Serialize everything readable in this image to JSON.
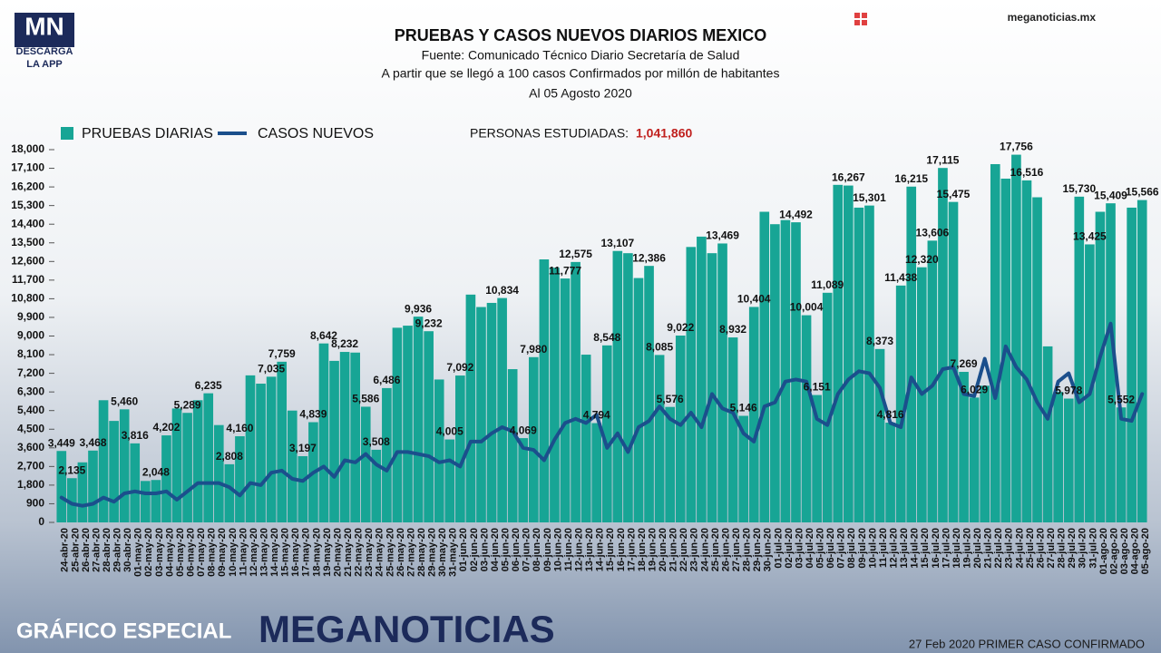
{
  "branding": {
    "logo": "MN",
    "logo_sub": "DESCARGA",
    "logo_app": "LA APP",
    "site": "meganoticias.mx",
    "footer_left": "GRÁFICO ESPECIAL",
    "footer_brand": "MEGANOTICIAS",
    "footer_note": "27 Feb 2020 PRIMER CASO CONFIRMADO"
  },
  "chart_data": {
    "type": "bar",
    "title": "PRUEBAS Y CASOS NUEVOS DIARIOS MEXICO",
    "subtitle": [
      "Fuente: Comunicado Técnico Diario Secretaría de Salud",
      "A partir que se llegó a 100 casos Confirmados por millón de habitantes",
      "Al 05 Agosto 2020"
    ],
    "annotation": {
      "text": "PERSONAS ESTUDIADAS:",
      "value": 1041860,
      "value_label": "1,041,860"
    },
    "categories": [
      "24-abr-20",
      "25-abr-20",
      "26-abr-20",
      "27-abr-20",
      "28-abr-20",
      "29-abr-20",
      "30-abr-20",
      "01-may-20",
      "02-may-20",
      "03-may-20",
      "04-may-20",
      "05-may-20",
      "06-may-20",
      "07-may-20",
      "08-may-20",
      "09-may-20",
      "10-may-20",
      "11-may-20",
      "12-may-20",
      "13-may-20",
      "14-may-20",
      "15-may-20",
      "16-may-20",
      "17-may-20",
      "18-may-20",
      "19-may-20",
      "20-may-20",
      "21-may-20",
      "22-may-20",
      "23-may-20",
      "24-may-20",
      "25-may-20",
      "26-may-20",
      "27-may-20",
      "28-may-20",
      "29-may-20",
      "30-may-20",
      "31-may-20",
      "01-jun-20",
      "02-jun-20",
      "03-jun-20",
      "04-jun-20",
      "05-jun-20",
      "06-jun-20",
      "07-jun-20",
      "08-jun-20",
      "09-jun-20",
      "10-jun-20",
      "11-jun-20",
      "12-jun-20",
      "13-jun-20",
      "14-jun-20",
      "15-jun-20",
      "16-jun-20",
      "17-jun-20",
      "18-jun-20",
      "19-jun-20",
      "20-jun-20",
      "21-jun-20",
      "22-jun-20",
      "23-jun-20",
      "24-jun-20",
      "25-jun-20",
      "26-jun-20",
      "27-jun-20",
      "28-jun-20",
      "29-jun-20",
      "30-jun-20",
      "01-jul-20",
      "02-jul-20",
      "03-jul-20",
      "04-jul-20",
      "05-jul-20",
      "06-jul-20",
      "07-jul-20",
      "08-jul-20",
      "09-jul-20",
      "10-jul-20",
      "11-jul-20",
      "12-jul-20",
      "13-jul-20",
      "14-jul-20",
      "15-jul-20",
      "16-jul-20",
      "17-jul-20",
      "18-jul-20",
      "19-jul-20",
      "20-jul-20",
      "21-jul-20",
      "22-jul-20",
      "23-jul-20",
      "24-jul-20",
      "25-jul-20",
      "26-jul-20",
      "27-jul-20",
      "28-jul-20",
      "29-jul-20",
      "30-jul-20",
      "31-jul-20",
      "01-ago-20",
      "02-ago-20",
      "03-ago-20",
      "04-ago-20",
      "05-ago-20"
    ],
    "series": [
      {
        "name": "PRUEBAS DIARIAS",
        "type": "bar",
        "color": "#17a595",
        "values": [
          3449,
          2135,
          2900,
          3468,
          5900,
          4900,
          5460,
          3816,
          2000,
          2048,
          4202,
          5500,
          5289,
          5900,
          6235,
          4700,
          2808,
          4160,
          7100,
          6700,
          7035,
          7759,
          5400,
          3197,
          4839,
          8642,
          7800,
          8232,
          8200,
          5586,
          3508,
          6486,
          9400,
          9500,
          9936,
          9232,
          6900,
          4005,
          7092,
          11000,
          10400,
          10600,
          10834,
          7400,
          4069,
          7980,
          12700,
          12300,
          11777,
          12575,
          8100,
          4794,
          8548,
          13107,
          13000,
          11800,
          12386,
          8085,
          5576,
          9022,
          13300,
          13800,
          13000,
          13469,
          8932,
          5146,
          10404,
          15000,
          14400,
          14600,
          14492,
          10004,
          6151,
          11089,
          16300,
          16267,
          15200,
          15301,
          8373,
          4816,
          11438,
          16215,
          12320,
          13606,
          17115,
          15475,
          7269,
          6029,
          6600,
          17300,
          16600,
          17756,
          16516,
          15700,
          8500,
          6300,
          5978,
          15730,
          13425,
          15000,
          15409,
          5552,
          15200,
          15566
        ],
        "value_labels": [
          "3,449",
          "2,135",
          null,
          "3,468",
          null,
          null,
          "5,460",
          "3,816",
          null,
          "2,048",
          "4,202",
          null,
          "5,289",
          null,
          "6,235",
          null,
          "2,808",
          "4,160",
          null,
          null,
          "7,035",
          "7,759",
          null,
          "3,197",
          "4,839",
          "8,642",
          null,
          "8,232",
          null,
          "5,586",
          "3,508",
          "6,486",
          null,
          null,
          "9,936",
          "9,232",
          null,
          "4,005",
          "7,092",
          null,
          null,
          null,
          "10,834",
          null,
          "4,069",
          "7,980",
          null,
          null,
          "11,777",
          "12,575",
          null,
          "4,794",
          "8,548",
          "13,107",
          null,
          null,
          "12,386",
          "8,085",
          "5,576",
          "9,022",
          null,
          null,
          null,
          "13,469",
          "8,932",
          "5,146",
          "10,404",
          null,
          null,
          null,
          "14,492",
          "10,004",
          "6,151",
          "11,089",
          null,
          "16,267",
          null,
          "15,301",
          "8,373",
          "4,816",
          "11,438",
          "16,215",
          "12,320",
          "13,606",
          "17,115",
          "15,475",
          "7,269",
          "6,029",
          null,
          null,
          null,
          "17,756",
          "16,516",
          null,
          null,
          null,
          "5,978",
          "15,730",
          "13,425",
          null,
          "15,409",
          "5,552",
          null,
          "15,566"
        ]
      },
      {
        "name": "CASOS NUEVOS",
        "type": "line",
        "color": "#1b4f8c",
        "values": [
          1200,
          900,
          800,
          900,
          1200,
          1000,
          1400,
          1500,
          1400,
          1400,
          1500,
          1100,
          1500,
          1900,
          1900,
          1900,
          1700,
          1300,
          1900,
          1800,
          2400,
          2500,
          2100,
          2000,
          2400,
          2700,
          2200,
          3000,
          2900,
          3300,
          2800,
          2500,
          3400,
          3400,
          3300,
          3200,
          2900,
          3000,
          2700,
          3900,
          3900,
          4300,
          4600,
          4400,
          3600,
          3500,
          3000,
          4000,
          4800,
          5000,
          4800,
          5200,
          3600,
          4300,
          3400,
          4600,
          4900,
          5600,
          5000,
          4700,
          5300,
          4600,
          6200,
          5500,
          5300,
          4300,
          3900,
          5600,
          5800,
          6800,
          6900,
          6800,
          5000,
          4700,
          6200,
          6900,
          7300,
          7200,
          6500,
          4800,
          4600,
          7000,
          6200,
          6600,
          7400,
          7500,
          6200,
          6100,
          7900,
          6000,
          8500,
          7500,
          6900,
          5800,
          5000,
          6800,
          7200,
          5800,
          6200,
          8000,
          9600,
          5000,
          4900,
          6200
        ]
      }
    ],
    "ylim": [
      0,
      18000
    ],
    "yticks": [
      0,
      900,
      {
        "value": 1800,
        "label": "1,800"
      },
      {
        "value": 2700,
        "label": "2,700"
      },
      {
        "value": 3600,
        "label": "3,600"
      },
      {
        "value": 4500,
        "label": "4,500"
      },
      {
        "value": 5400,
        "label": "5,400"
      },
      {
        "value": 6300,
        "label": "6,300"
      },
      {
        "value": 7200,
        "label": "7,200"
      },
      {
        "value": 8100,
        "label": "8,100"
      },
      {
        "value": 9000,
        "label": "9,000"
      },
      {
        "value": 9900,
        "label": "9,900"
      },
      {
        "value": 10800,
        "label": "10,800"
      },
      {
        "value": 11700,
        "label": "11,700"
      },
      {
        "value": 12600,
        "label": "12,600"
      },
      {
        "value": 13500,
        "label": "13,500"
      },
      {
        "value": 14400,
        "label": "14,400"
      },
      {
        "value": 15300,
        "label": "15,300"
      },
      {
        "value": 16200,
        "label": "16,200"
      },
      {
        "value": 17100,
        "label": "17,100"
      },
      {
        "value": 18000,
        "label": "18,000"
      }
    ],
    "grid": false
  }
}
